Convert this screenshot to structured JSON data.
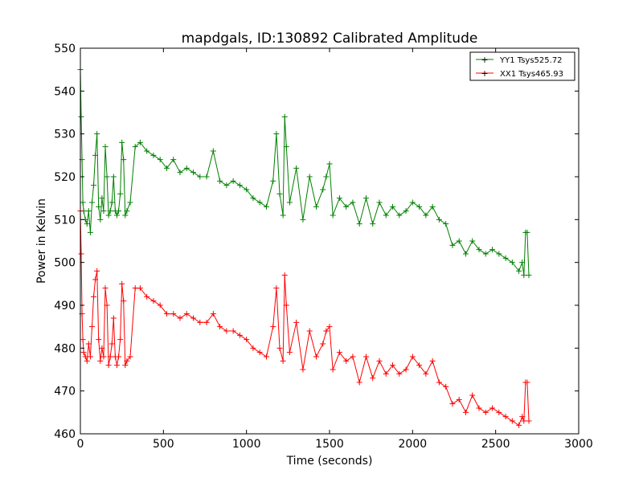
{
  "chart_data": {
    "type": "line",
    "title": "mapdgals, ID:130892 Calibrated Amplitude",
    "xlabel": "Time (seconds)",
    "ylabel": "Power in Kelvin",
    "xlim": [
      0,
      3000
    ],
    "ylim": [
      460,
      550
    ],
    "xticks": [
      0,
      500,
      1000,
      1500,
      2000,
      2500,
      3000
    ],
    "yticks": [
      460,
      470,
      480,
      490,
      500,
      510,
      520,
      530,
      540,
      550
    ],
    "grid": false,
    "legend_position": "top-right",
    "marker": "+",
    "series": [
      {
        "name": "YY1 Tsys525.72",
        "color": "#008000",
        "x": [
          0,
          5,
          10,
          15,
          20,
          30,
          40,
          50,
          60,
          70,
          80,
          90,
          100,
          110,
          120,
          130,
          140,
          150,
          160,
          170,
          180,
          190,
          200,
          210,
          220,
          230,
          240,
          250,
          260,
          270,
          280,
          300,
          330,
          360,
          400,
          440,
          480,
          520,
          560,
          600,
          640,
          680,
          720,
          760,
          800,
          840,
          880,
          920,
          960,
          1000,
          1040,
          1080,
          1120,
          1160,
          1180,
          1200,
          1220,
          1230,
          1240,
          1260,
          1300,
          1340,
          1380,
          1420,
          1460,
          1480,
          1500,
          1520,
          1560,
          1600,
          1640,
          1680,
          1720,
          1760,
          1800,
          1840,
          1880,
          1920,
          1960,
          2000,
          2040,
          2080,
          2120,
          2160,
          2200,
          2240,
          2280,
          2320,
          2360,
          2400,
          2440,
          2480,
          2520,
          2560,
          2600,
          2640,
          2660,
          2670,
          2680,
          2690,
          2700
        ],
        "y": [
          545,
          534,
          524,
          514,
          512,
          510,
          509,
          512,
          507,
          514,
          518,
          525,
          530,
          513,
          510,
          515,
          512,
          527,
          520,
          511,
          512,
          514,
          520,
          512,
          511,
          512,
          516,
          528,
          524,
          511,
          512,
          514,
          527,
          528,
          526,
          525,
          524,
          522,
          524,
          521,
          522,
          521,
          520,
          520,
          526,
          519,
          518,
          519,
          518,
          517,
          515,
          514,
          513,
          519,
          530,
          516,
          511,
          534,
          527,
          514,
          522,
          510,
          520,
          513,
          517,
          520,
          523,
          511,
          515,
          513,
          514,
          509,
          515,
          509,
          514,
          511,
          513,
          511,
          512,
          514,
          513,
          511,
          513,
          510,
          509,
          504,
          505,
          502,
          505,
          503,
          502,
          503,
          502,
          501,
          500,
          498,
          500,
          497,
          507,
          507,
          497
        ]
      },
      {
        "name": "XX1 Tsys465.93",
        "color": "#ff0000",
        "x": [
          0,
          5,
          10,
          15,
          20,
          30,
          40,
          50,
          60,
          70,
          80,
          90,
          100,
          110,
          120,
          130,
          140,
          150,
          160,
          170,
          180,
          190,
          200,
          210,
          220,
          230,
          240,
          250,
          260,
          270,
          280,
          300,
          330,
          360,
          400,
          440,
          480,
          520,
          560,
          600,
          640,
          680,
          720,
          760,
          800,
          840,
          880,
          920,
          960,
          1000,
          1040,
          1080,
          1120,
          1160,
          1180,
          1200,
          1220,
          1230,
          1240,
          1260,
          1300,
          1340,
          1380,
          1420,
          1460,
          1480,
          1500,
          1520,
          1560,
          1600,
          1640,
          1680,
          1720,
          1760,
          1800,
          1840,
          1880,
          1920,
          1960,
          2000,
          2040,
          2080,
          2120,
          2160,
          2200,
          2240,
          2280,
          2320,
          2360,
          2400,
          2440,
          2480,
          2520,
          2560,
          2600,
          2640,
          2660,
          2670,
          2680,
          2690,
          2700
        ],
        "y": [
          512,
          502,
          488,
          482,
          479,
          478,
          477,
          481,
          478,
          485,
          492,
          496,
          498,
          482,
          477,
          480,
          478,
          494,
          490,
          476,
          478,
          481,
          487,
          478,
          476,
          478,
          482,
          495,
          491,
          476,
          477,
          478,
          494,
          494,
          492,
          491,
          490,
          488,
          488,
          487,
          488,
          487,
          486,
          486,
          488,
          485,
          484,
          484,
          483,
          482,
          480,
          479,
          478,
          485,
          494,
          480,
          477,
          497,
          490,
          479,
          486,
          475,
          484,
          478,
          481,
          484,
          485,
          475,
          479,
          477,
          478,
          472,
          478,
          473,
          477,
          474,
          476,
          474,
          475,
          478,
          476,
          474,
          477,
          472,
          471,
          467,
          468,
          465,
          469,
          466,
          465,
          466,
          465,
          464,
          463,
          462,
          464,
          463,
          472,
          472,
          463
        ]
      }
    ]
  }
}
